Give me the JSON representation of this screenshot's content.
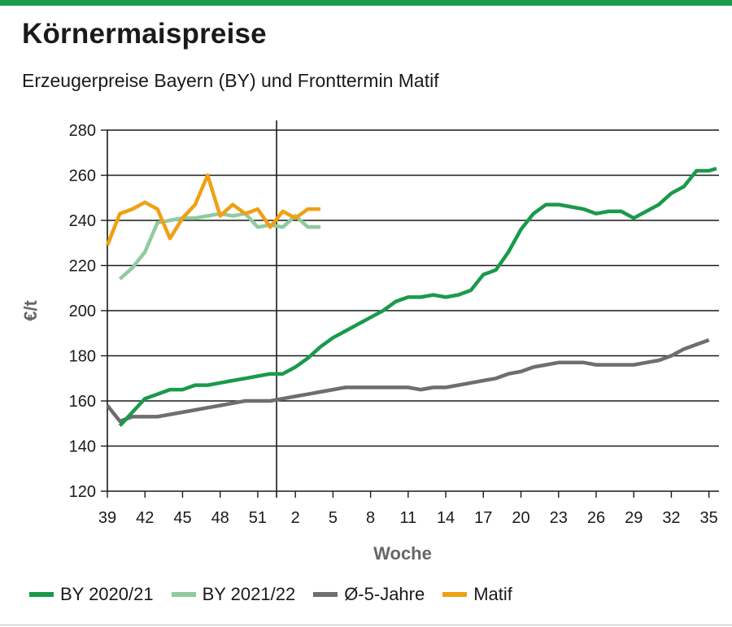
{
  "header": {
    "title": "Körnermaispreise",
    "subtitle": "Erzeugerpreise Bayern (BY) und Fronttermin Matif"
  },
  "chart_data": {
    "type": "line",
    "title": "Körnermaispreise",
    "subtitle": "Erzeugerpreise Bayern (BY) und Fronttermin Matif",
    "xlabel": "Woche",
    "ylabel": "€/t",
    "ylim": [
      120,
      280
    ],
    "yticks": [
      120,
      140,
      160,
      180,
      200,
      220,
      240,
      260,
      280
    ],
    "x_tick_labels": [
      "39",
      "42",
      "45",
      "48",
      "51",
      "2",
      "5",
      "8",
      "11",
      "14",
      "17",
      "20",
      "23",
      "26",
      "29",
      "32",
      "35"
    ],
    "x_tick_positions": [
      0,
      3,
      6,
      9,
      12,
      15,
      18,
      21,
      24,
      27,
      30,
      33,
      36,
      39,
      42,
      45,
      48
    ],
    "x_range": [
      0,
      48.8
    ],
    "x_note": "x = weeks since week 39 (week 52 = 13, week 1 = 14); year boundary marked by vertical line",
    "year_break_x": 13.5,
    "grid": "horizontal",
    "legend_position": "bottom",
    "series": [
      {
        "name": "BY 2020/21",
        "color": "#1a9a4b",
        "x": [
          1,
          2,
          3,
          4,
          5,
          6,
          7,
          8,
          9,
          10,
          11,
          12,
          13,
          14,
          15,
          16,
          17,
          18,
          19,
          20,
          21,
          22,
          23,
          24,
          25,
          26,
          27,
          28,
          29,
          30,
          31,
          32,
          33,
          34,
          35,
          36,
          37,
          38,
          39,
          40,
          41,
          42,
          43,
          44,
          45,
          46,
          47,
          48,
          48.6
        ],
        "values": [
          149,
          155,
          161,
          163,
          165,
          165,
          167,
          167,
          168,
          169,
          170,
          171,
          172,
          172,
          175,
          179,
          184,
          188,
          191,
          194,
          197,
          200,
          204,
          206,
          206,
          207,
          206,
          207,
          209,
          216,
          218,
          226,
          236,
          243,
          247,
          247,
          246,
          245,
          243,
          244,
          244,
          241,
          244,
          247,
          252,
          255,
          262,
          262,
          263
        ]
      },
      {
        "name": "BY 2021/22",
        "color": "#8fcb9e",
        "x": [
          1,
          2,
          3,
          4,
          5,
          6,
          7,
          8,
          9,
          10,
          11,
          12,
          13,
          14,
          15,
          16,
          17
        ],
        "values": [
          214,
          219,
          226,
          239,
          240,
          241,
          241,
          242,
          243,
          242,
          243,
          237,
          238,
          237,
          242,
          237,
          237
        ]
      },
      {
        "name": "Ø-5-Jahre",
        "color": "#6e6e6e",
        "x": [
          0,
          1,
          2,
          3,
          4,
          5,
          6,
          7,
          8,
          9,
          10,
          11,
          12,
          13,
          14,
          15,
          16,
          17,
          18,
          19,
          20,
          21,
          22,
          23,
          24,
          25,
          26,
          27,
          28,
          29,
          30,
          31,
          32,
          33,
          34,
          35,
          36,
          37,
          38,
          39,
          40,
          41,
          42,
          43,
          44,
          45,
          46,
          47,
          48
        ],
        "values": [
          158,
          151,
          153,
          153,
          153,
          154,
          155,
          156,
          157,
          158,
          159,
          160,
          160,
          160,
          161,
          162,
          163,
          164,
          165,
          166,
          166,
          166,
          166,
          166,
          166,
          165,
          166,
          166,
          167,
          168,
          169,
          170,
          172,
          173,
          175,
          176,
          177,
          177,
          177,
          176,
          176,
          176,
          176,
          177,
          178,
          180,
          183,
          185,
          187
        ]
      },
      {
        "name": "Matif",
        "color": "#f0a014",
        "x": [
          0,
          1,
          2,
          3,
          4,
          5,
          6,
          7,
          8,
          9,
          10,
          11,
          12,
          13,
          14,
          15,
          16,
          17
        ],
        "values": [
          229,
          243,
          245,
          248,
          245,
          232,
          241,
          247,
          260,
          242,
          247,
          243,
          245,
          237,
          244,
          241,
          245,
          245
        ]
      }
    ]
  }
}
